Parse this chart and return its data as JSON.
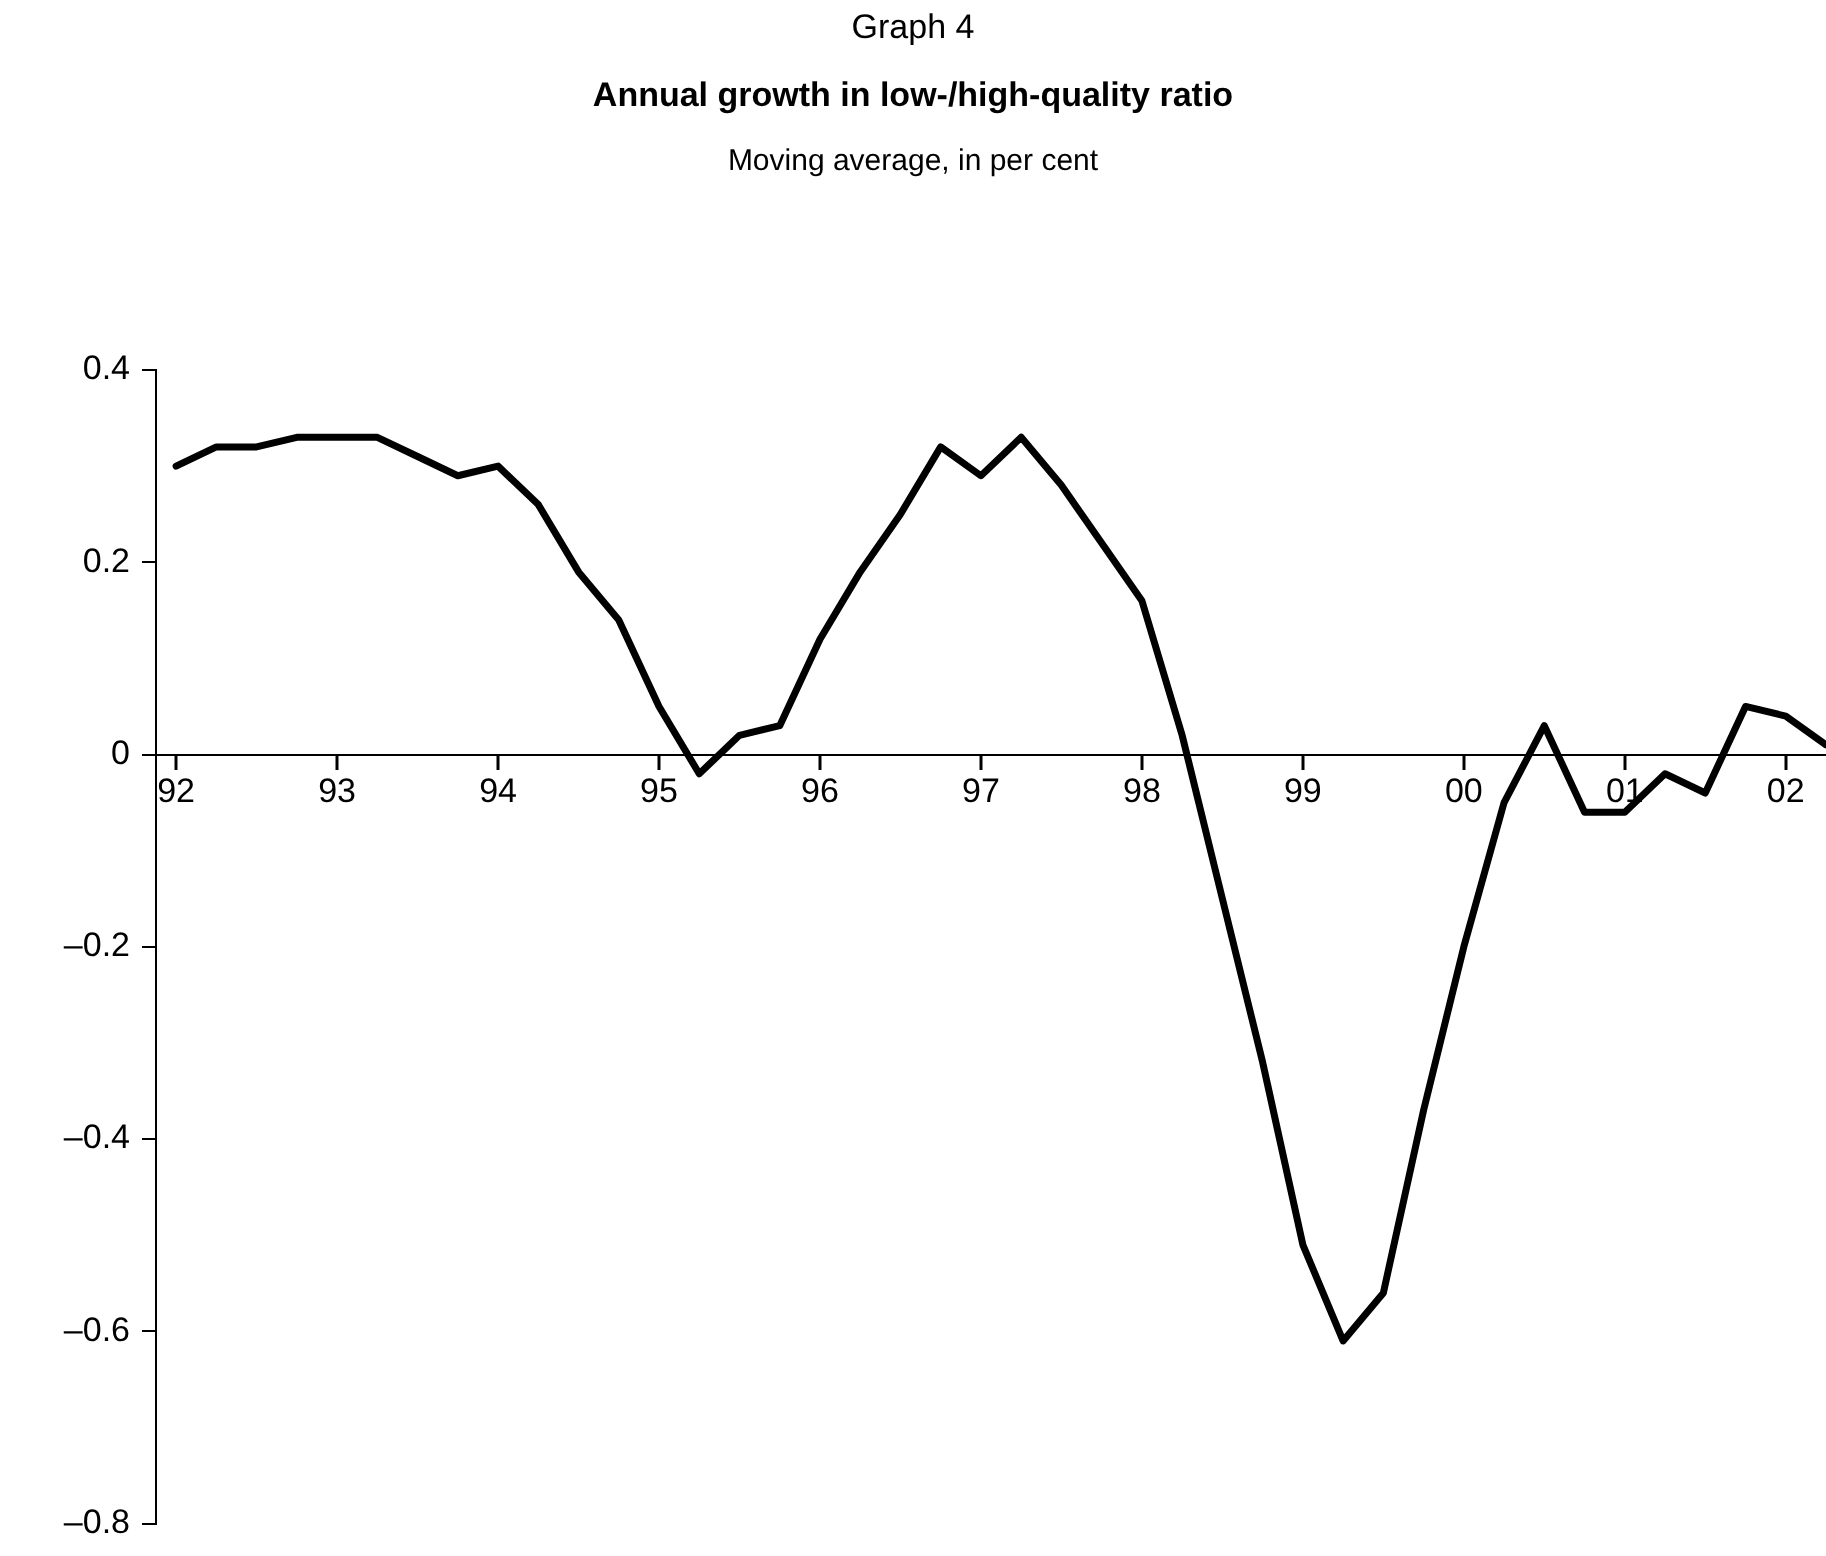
{
  "chart_data": {
    "type": "line",
    "title": "Annual growth in low-/high-quality ratio",
    "subtitle": "Moving average, in per cent",
    "annotations": [
      "Graph 4"
    ],
    "x": [
      1992,
      1992.25,
      1992.5,
      1992.75,
      1993,
      1993.25,
      1993.5,
      1993.75,
      1994,
      1994.25,
      1994.5,
      1994.75,
      1995,
      1995.25,
      1995.5,
      1995.75,
      1996,
      1996.25,
      1996.5,
      1996.75,
      1997,
      1997.25,
      1997.5,
      1997.75,
      1998,
      1998.25,
      1998.5,
      1998.75,
      1999,
      1999.25,
      1999.5,
      1999.75,
      2000,
      2000.25,
      2000.5,
      2000.75,
      2001,
      2001.25,
      2001.5,
      2001.75,
      2002,
      2002.25
    ],
    "series": [
      {
        "color": "#000000",
        "values": [
          0.3,
          0.32,
          0.32,
          0.33,
          0.33,
          0.33,
          0.31,
          0.29,
          0.3,
          0.26,
          0.19,
          0.14,
          0.05,
          -0.02,
          0.02,
          0.03,
          0.12,
          0.19,
          0.25,
          0.32,
          0.29,
          0.33,
          0.28,
          0.22,
          0.16,
          0.02,
          -0.15,
          -0.32,
          -0.51,
          -0.61,
          -0.56,
          -0.37,
          -0.2,
          -0.05,
          0.03,
          -0.06,
          -0.06,
          -0.02,
          -0.04,
          0.05,
          0.04,
          0.01
        ]
      }
    ],
    "xlim": [
      1991.875,
      2002.25
    ],
    "xticks": [
      {
        "value": 1992,
        "label": "92"
      },
      {
        "value": 1993,
        "label": "93"
      },
      {
        "value": 1994,
        "label": "94"
      },
      {
        "value": 1995,
        "label": "95"
      },
      {
        "value": 1996,
        "label": "96"
      },
      {
        "value": 1997,
        "label": "97"
      },
      {
        "value": 1998,
        "label": "98"
      },
      {
        "value": 1999,
        "label": "99"
      },
      {
        "value": 2000,
        "label": "00"
      },
      {
        "value": 2001,
        "label": "01"
      },
      {
        "value": 2002,
        "label": "02"
      }
    ],
    "ylim": [
      -0.8,
      0.4
    ],
    "yticks": [
      {
        "value": -0.8,
        "label": "–0.8"
      },
      {
        "value": -0.6,
        "label": "–0.6"
      },
      {
        "value": -0.4,
        "label": "–0.4"
      },
      {
        "value": -0.2,
        "label": "–0.2"
      },
      0,
      0.2,
      0.4
    ],
    "grid": false,
    "legend": false,
    "marker": "none",
    "line_style": "solid"
  }
}
